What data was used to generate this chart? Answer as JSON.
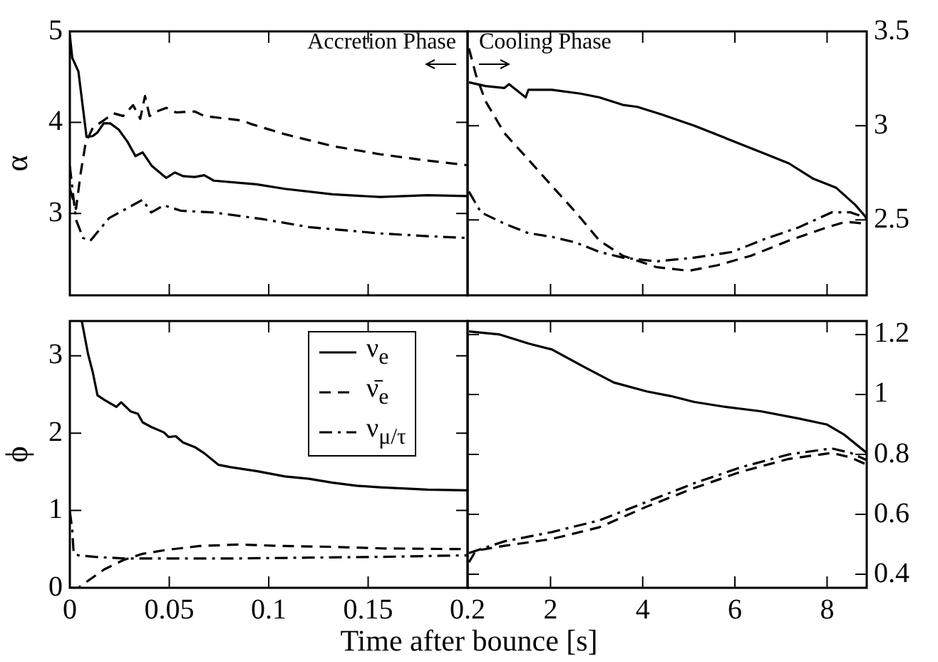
{
  "chart_data": [
    {
      "type": "line",
      "ylabel": "α",
      "xlim": [
        0,
        0.2
      ],
      "xticks": [
        0,
        0.05,
        0.1,
        0.15,
        0.2
      ],
      "ylim": [
        2.1,
        5
      ],
      "yticks": [
        3,
        4,
        5
      ],
      "tick_labels": "y",
      "marker": "none",
      "grid": false,
      "annotations": [
        "Accretion Phase"
      ],
      "series": [
        {
          "color": "#000000",
          "line_style": "solid",
          "x": [
            0,
            0.0012,
            0.0043,
            0.0084,
            0.0115,
            0.0139,
            0.017,
            0.0203,
            0.0246,
            0.0289,
            0.033,
            0.0366,
            0.0413,
            0.0485,
            0.0528,
            0.0569,
            0.0628,
            0.0676,
            0.0724,
            0.0939,
            0.1082,
            0.1321,
            0.156,
            0.1799,
            0.2
          ],
          "values": [
            4.96,
            4.71,
            4.56,
            3.84,
            3.85,
            3.89,
            3.99,
            3.99,
            3.92,
            3.79,
            3.63,
            3.67,
            3.52,
            3.39,
            3.45,
            3.41,
            3.4,
            3.42,
            3.36,
            3.32,
            3.27,
            3.21,
            3.18,
            3.2,
            3.19
          ]
        },
        {
          "color": "#000000",
          "line_style": "dashed",
          "x": [
            0,
            0.0031,
            0.0055,
            0.0079,
            0.0115,
            0.0162,
            0.022,
            0.0268,
            0.0318,
            0.0354,
            0.0378,
            0.0401,
            0.0437,
            0.0485,
            0.0533,
            0.0628,
            0.0676,
            0.0867,
            0.0915,
            0.1082,
            0.1321,
            0.156,
            0.1799,
            0.2
          ],
          "values": [
            3.27,
            3.05,
            3.45,
            3.77,
            3.94,
            4.01,
            4.1,
            4.07,
            4.19,
            4.04,
            4.29,
            4.07,
            4.12,
            4.16,
            4.11,
            4.12,
            4.07,
            4.02,
            3.98,
            3.87,
            3.74,
            3.65,
            3.58,
            3.53
          ]
        },
        {
          "color": "#000000",
          "line_style": "dashdot",
          "x": [
            0,
            0.0031,
            0.0067,
            0.0103,
            0.0198,
            0.0282,
            0.0366,
            0.0409,
            0.0473,
            0.0557,
            0.0724,
            0.0963,
            0.1202,
            0.156,
            0.1799,
            0.2
          ],
          "values": [
            3.52,
            2.93,
            2.73,
            2.7,
            2.95,
            3.05,
            3.15,
            3.01,
            3.09,
            3.03,
            3.01,
            2.94,
            2.85,
            2.78,
            2.75,
            2.73
          ]
        }
      ]
    },
    {
      "type": "line",
      "xlim": [
        0.2,
        8.86
      ],
      "xticks": [
        2,
        4,
        6,
        8
      ],
      "ylim": [
        2.1,
        3.5
      ],
      "yticks": [
        2.5,
        3,
        3.5
      ],
      "tick_labels": "y",
      "marker": "none",
      "grid": false,
      "annotations": [
        "Cooling Phase"
      ],
      "series": [
        {
          "color": "#000000",
          "line_style": "solid",
          "x": [
            0.23,
            0.59,
            1.0,
            1.1,
            1.46,
            1.52,
            2.03,
            2.65,
            3.06,
            3.57,
            3.88,
            4.4,
            5.12,
            5.84,
            6.66,
            7.17,
            7.69,
            8.2,
            8.61,
            8.86
          ],
          "values": [
            3.23,
            3.21,
            3.2,
            3.22,
            3.15,
            3.19,
            3.19,
            3.17,
            3.15,
            3.11,
            3.1,
            3.06,
            3.0,
            2.93,
            2.85,
            2.8,
            2.72,
            2.67,
            2.58,
            2.51
          ]
        },
        {
          "color": "#000000",
          "line_style": "dashed",
          "x": [
            0.23,
            0.38,
            0.59,
            1.0,
            1.52,
            2.03,
            2.55,
            3.06,
            3.57,
            4.29,
            5.0,
            5.63,
            6.35,
            7.17,
            7.99,
            8.4,
            8.86
          ],
          "values": [
            3.41,
            3.27,
            3.13,
            2.96,
            2.82,
            2.68,
            2.54,
            2.39,
            2.31,
            2.25,
            2.23,
            2.26,
            2.31,
            2.39,
            2.46,
            2.49,
            2.48
          ]
        },
        {
          "color": "#000000",
          "line_style": "dashdot",
          "x": [
            0.23,
            0.49,
            1.0,
            1.52,
            2.03,
            2.55,
            3.06,
            3.57,
            4.29,
            5.12,
            5.94,
            6.66,
            7.38,
            8.1,
            8.51,
            8.86
          ],
          "values": [
            2.65,
            2.54,
            2.48,
            2.43,
            2.41,
            2.38,
            2.33,
            2.3,
            2.28,
            2.3,
            2.33,
            2.4,
            2.46,
            2.54,
            2.54,
            2.51
          ]
        }
      ]
    },
    {
      "type": "line",
      "ylabel": "ϕ",
      "xlabel": "Time after bounce [s]",
      "xlim": [
        0,
        0.2
      ],
      "xticks": [
        0,
        0.05,
        0.1,
        0.15,
        0.2
      ],
      "ylim": [
        0,
        3.45
      ],
      "yticks": [
        0,
        1,
        2,
        3
      ],
      "legend": "top right",
      "marker": "none",
      "grid": false,
      "series": [
        {
          "name": "ν$_{e}$",
          "color": "#000000",
          "line_style": "solid",
          "x": [
            0.006,
            0.0091,
            0.0115,
            0.0139,
            0.0174,
            0.0234,
            0.0258,
            0.0306,
            0.0342,
            0.0366,
            0.0409,
            0.0473,
            0.0497,
            0.0533,
            0.0569,
            0.0628,
            0.0676,
            0.0748,
            0.0808,
            0.0939,
            0.1082,
            0.1202,
            0.1321,
            0.1441,
            0.156,
            0.1799,
            0.2
          ],
          "values": [
            3.45,
            3.03,
            2.79,
            2.49,
            2.43,
            2.34,
            2.4,
            2.28,
            2.25,
            2.14,
            2.08,
            2.01,
            1.95,
            1.96,
            1.88,
            1.82,
            1.74,
            1.59,
            1.56,
            1.51,
            1.44,
            1.41,
            1.36,
            1.32,
            1.3,
            1.27,
            1.26
          ]
        },
        {
          "name": "ν̄$_{e}$",
          "color": "#000000",
          "line_style": "dashed",
          "x": [
            0,
            0.0043,
            0.0091,
            0.0174,
            0.027,
            0.0366,
            0.0485,
            0.0652,
            0.0843,
            0.1082,
            0.1321,
            0.156,
            0.2
          ],
          "values": [
            0,
            0,
            0.09,
            0.24,
            0.36,
            0.44,
            0.49,
            0.54,
            0.56,
            0.54,
            0.53,
            0.51,
            0.5
          ]
        },
        {
          "name": "ν$_{μ/τ}$",
          "color": "#000000",
          "line_style": "dashdot",
          "x": [
            0,
            0.0012,
            0.0019,
            0.0043,
            0.0127,
            0.027,
            0.0485,
            0.0843,
            0.1202,
            0.156,
            0.2
          ],
          "values": [
            0.99,
            0.75,
            0.45,
            0.42,
            0.4,
            0.38,
            0.38,
            0.38,
            0.39,
            0.4,
            0.42
          ]
        }
      ]
    },
    {
      "type": "line",
      "xlim": [
        0.2,
        8.86
      ],
      "xticks": [
        2,
        4,
        6,
        8
      ],
      "ylim": [
        0.355,
        1.245
      ],
      "yticks": [
        0.4,
        0.6,
        0.8,
        1,
        1.2
      ],
      "marker": "none",
      "grid": false,
      "series": [
        {
          "color": "#000000",
          "line_style": "solid",
          "x": [
            0.23,
            0.9,
            1.52,
            2.03,
            2.75,
            3.37,
            4.09,
            4.6,
            5.12,
            5.73,
            6.56,
            7.38,
            7.99,
            8.36,
            8.86
          ],
          "values": [
            1.21,
            1.2,
            1.17,
            1.15,
            1.09,
            1.04,
            1.01,
            0.995,
            0.975,
            0.96,
            0.944,
            0.92,
            0.9,
            0.867,
            0.805
          ]
        },
        {
          "color": "#000000",
          "line_style": "dashed",
          "x": [
            0.23,
            0.38,
            1.0,
            2.03,
            3.06,
            4.09,
            5.12,
            6.15,
            7.17,
            8.1,
            8.51,
            8.86
          ],
          "values": [
            0.44,
            0.479,
            0.495,
            0.518,
            0.557,
            0.626,
            0.688,
            0.743,
            0.785,
            0.805,
            0.79,
            0.766
          ]
        },
        {
          "color": "#000000",
          "line_style": "dashdot",
          "x": [
            0.23,
            1.0,
            2.03,
            3.06,
            4.09,
            5.12,
            6.15,
            7.17,
            8.1,
            8.51,
            8.86
          ],
          "values": [
            0.471,
            0.51,
            0.541,
            0.58,
            0.642,
            0.704,
            0.758,
            0.8,
            0.82,
            0.805,
            0.781
          ]
        }
      ]
    }
  ]
}
